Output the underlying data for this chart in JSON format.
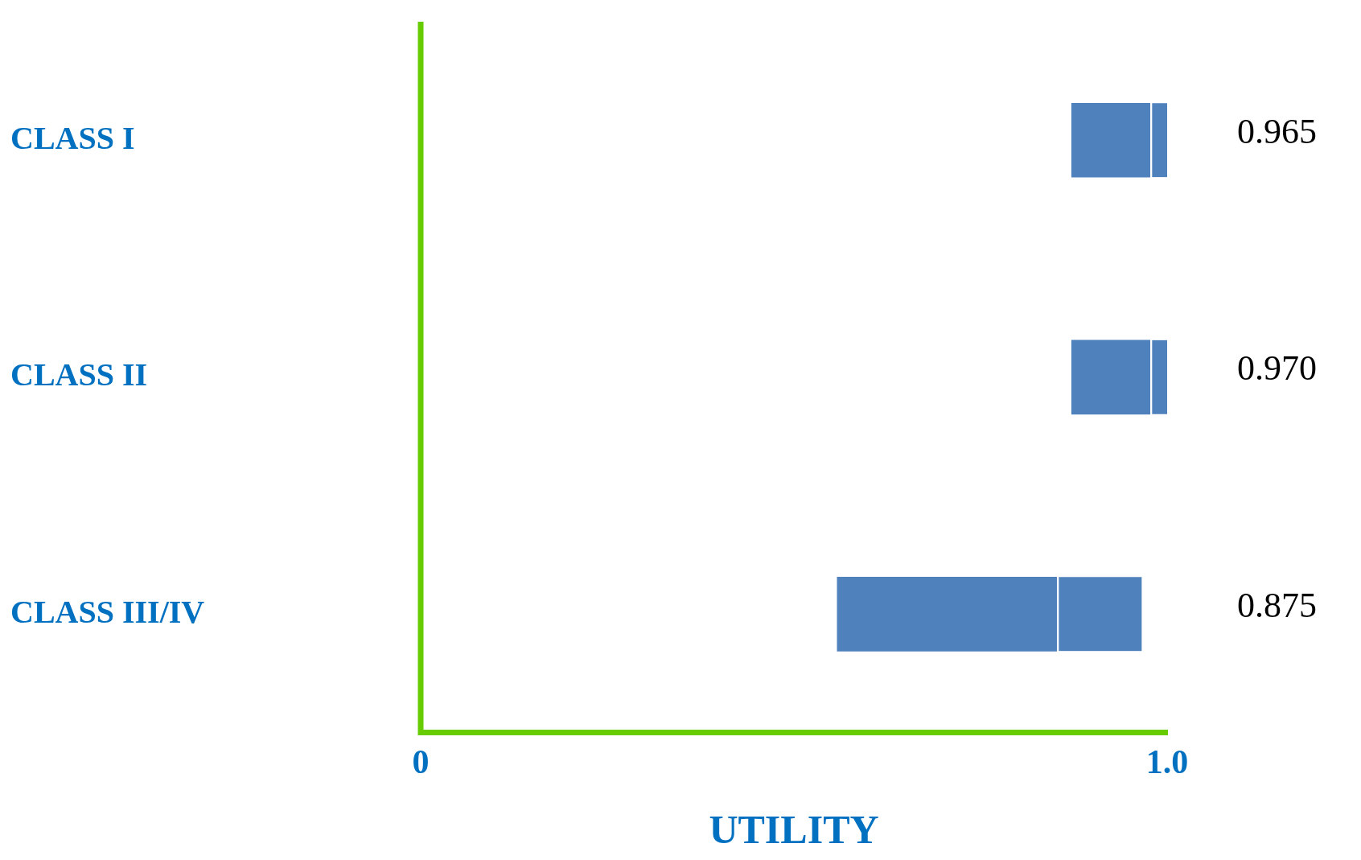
{
  "chart_data": {
    "type": "bar",
    "orientation": "horizontal",
    "xlabel": "UTILITY",
    "categories": [
      "CLASS I",
      "CLASS II",
      "CLASS III/IV"
    ],
    "series": [
      {
        "color": "#4f81bd",
        "base": [
          0.872,
          0.872,
          0.558
        ],
        "values": [
          0.105,
          0.105,
          0.294
        ]
      },
      {
        "color": "#4f81bd",
        "base": [
          0.977,
          0.977,
          0.852
        ],
        "values": [
          0.023,
          0.023,
          0.114
        ]
      }
    ],
    "annotations": [
      "0.965",
      "0.970",
      "0.875"
    ],
    "ref_lines": [
      {
        "axis": "x",
        "value": 0,
        "color": "#66cc00"
      }
    ],
    "xlim": [
      0,
      1
    ],
    "xticks": [
      0,
      {
        "value": 1,
        "label": "1.0"
      }
    ],
    "grid": false,
    "legend": false
  }
}
